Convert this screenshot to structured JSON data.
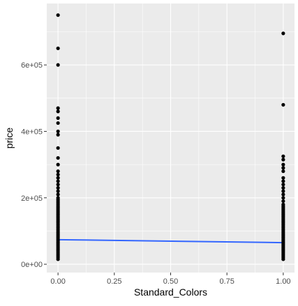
{
  "chart_data": {
    "type": "scatter",
    "xlabel": "Standard_Colors",
    "ylabel": "price",
    "xlim": [
      -0.05,
      1.05
    ],
    "ylim": [
      -25000,
      785000
    ],
    "x_ticks": [
      0.0,
      0.25,
      0.5,
      0.75,
      1.0
    ],
    "x_tick_labels": [
      "0.00",
      "0.25",
      "0.50",
      "0.75",
      "1.00"
    ],
    "y_ticks": [
      0,
      200000,
      400000,
      600000
    ],
    "y_tick_labels": [
      "0e+00",
      "2e+05",
      "4e+05",
      "6e+05"
    ],
    "grid": true,
    "panel_color": "#EBEBEB",
    "grid_color": "#FFFFFF",
    "point_color": "#000000",
    "trend_color": "#3366FF",
    "series": [
      {
        "x": 0,
        "values": [
          750000,
          650000,
          600000,
          470000,
          460000,
          440000,
          425000,
          400000,
          390000,
          350000,
          320000,
          300000,
          280000,
          270000,
          260000,
          250000,
          240000,
          230000,
          220000,
          210000,
          200000,
          195000,
          190000,
          185000,
          180000,
          175000,
          170000,
          165000,
          160000,
          155000,
          150000,
          145000,
          140000,
          135000,
          130000,
          125000,
          120000,
          115000,
          110000,
          105000,
          100000,
          95000,
          90000,
          85000,
          80000,
          75000,
          70000,
          65000,
          60000,
          55000,
          50000,
          45000,
          40000,
          35000,
          30000,
          25000,
          20000,
          15000
        ]
      },
      {
        "x": 1,
        "values": [
          695000,
          480000,
          325000,
          315000,
          300000,
          290000,
          280000,
          260000,
          250000,
          240000,
          230000,
          220000,
          210000,
          200000,
          190000,
          180000,
          175000,
          170000,
          165000,
          160000,
          155000,
          150000,
          145000,
          140000,
          135000,
          130000,
          125000,
          120000,
          115000,
          110000,
          105000,
          100000,
          95000,
          90000,
          85000,
          80000,
          75000,
          70000,
          65000,
          60000,
          55000,
          50000,
          45000,
          40000,
          35000,
          30000,
          25000,
          20000,
          15000
        ]
      }
    ],
    "trend_line": {
      "x": [
        0,
        1
      ],
      "y": [
        74000,
        65000
      ]
    }
  }
}
